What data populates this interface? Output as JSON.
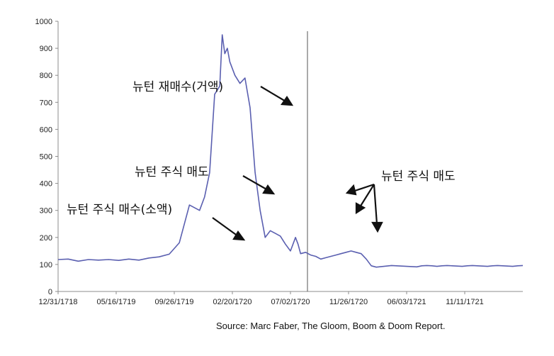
{
  "chart_data": {
    "type": "line",
    "series_color": "#5a5fb0",
    "axis_color": "#8c8c8c",
    "ylim": [
      0,
      1000
    ],
    "yticks": [
      "0",
      "100",
      "200",
      "300",
      "400",
      "500",
      "600",
      "700",
      "800",
      "900",
      "1000"
    ],
    "xticks": [
      "12/31/1718",
      "05/16/1719",
      "09/26/1719",
      "02/20/1720",
      "07/02/1720",
      "11/26/1720",
      "06/03/1721",
      "11/11/1721"
    ],
    "series": [
      {
        "x": [
          0,
          2,
          4,
          6,
          8,
          10,
          12,
          14,
          16,
          18,
          20,
          22,
          24,
          26,
          28,
          29,
          30,
          31,
          32,
          32.5,
          33,
          33.5,
          34,
          35,
          36,
          37,
          38,
          39,
          40,
          41,
          42,
          43,
          44,
          45,
          46,
          46.5,
          47,
          47.5,
          48,
          49,
          50,
          51,
          52,
          53,
          54,
          55,
          56,
          57,
          58,
          59,
          60,
          61,
          62,
          63,
          64,
          65,
          66,
          67,
          68,
          69,
          70,
          71,
          72,
          73,
          74,
          75,
          76,
          77,
          78,
          79,
          80,
          81,
          82,
          83,
          84,
          85,
          86,
          87,
          88,
          89,
          90,
          91,
          92
        ],
        "y": [
          118,
          120,
          112,
          118,
          116,
          118,
          115,
          120,
          116,
          124,
          128,
          138,
          180,
          320,
          300,
          350,
          440,
          730,
          760,
          950,
          880,
          900,
          850,
          800,
          770,
          790,
          680,
          440,
          300,
          200,
          225,
          215,
          205,
          175,
          150,
          175,
          200,
          175,
          140,
          145,
          135,
          130,
          120,
          125,
          130,
          135,
          140,
          145,
          150,
          145,
          140,
          120,
          95,
          90,
          92,
          94,
          96,
          95,
          94,
          93,
          92,
          91,
          95,
          96,
          95,
          93,
          95,
          96,
          95,
          94,
          93,
          95,
          96,
          95,
          94,
          93,
          95,
          96,
          95,
          94,
          93,
          95,
          96
        ],
        "values_note": ""
      }
    ],
    "annotations": [
      "뉴턴 재매수(거액)",
      "뉴턴 주식 매도",
      "뉴턴 주식 매수(소액)",
      "뉴턴 주식 매도"
    ],
    "source": "Source: Marc Faber, The Gloom, Boom & Doom Report."
  }
}
